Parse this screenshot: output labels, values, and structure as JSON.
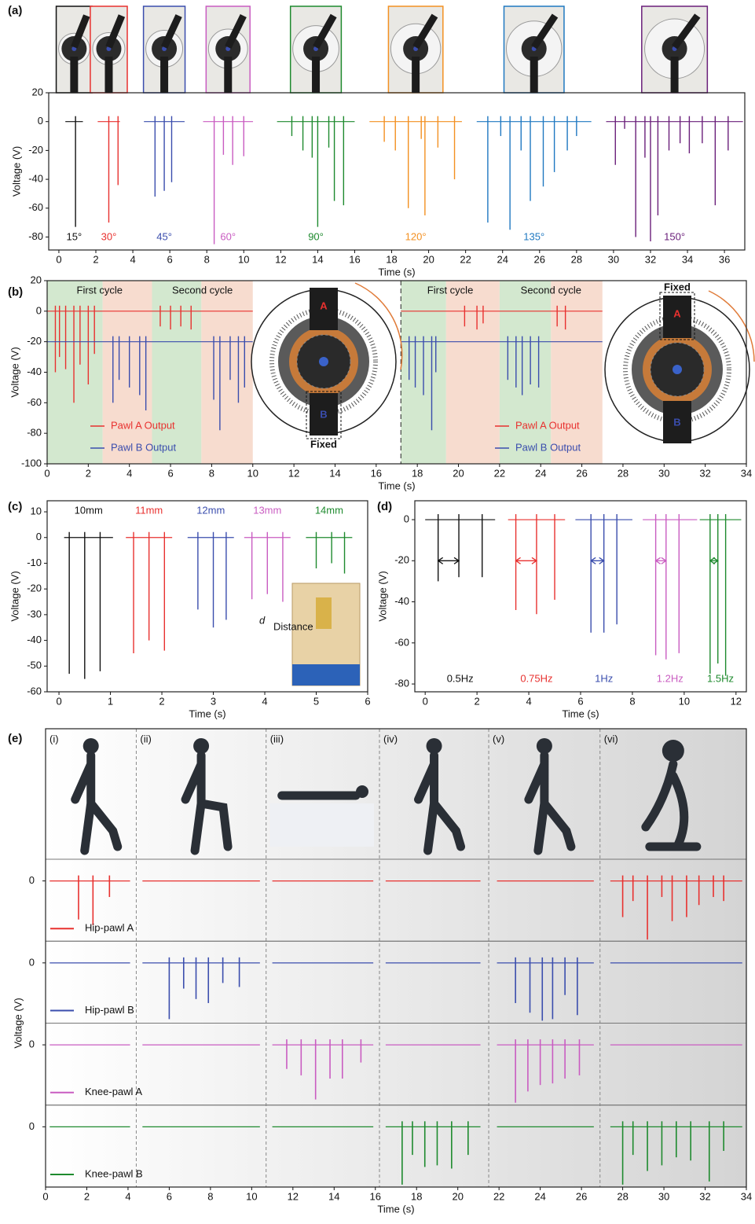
{
  "chart_data": [
    {
      "type": "spike",
      "panel": "(a)",
      "xlabel": "Time (s)",
      "ylabel": "Voltage (V)",
      "xlim": [
        -0.55,
        37.1
      ],
      "ylim": [
        -89,
        20
      ],
      "xticks": [
        0,
        2,
        4,
        6,
        8,
        10,
        12,
        14,
        16,
        18,
        20,
        22,
        24,
        26,
        28,
        30,
        32,
        34,
        36
      ],
      "yticks": [
        20,
        0,
        -20,
        -40,
        -60,
        -80
      ],
      "series": [
        {
          "name": "15°",
          "color": "#111111",
          "spans": [
            [
              0.35,
              1.3
            ]
          ],
          "x": [
            0.9
          ],
          "values": [
            -73
          ]
        },
        {
          "name": "30°",
          "color": "#e8312f",
          "spans": [
            [
              2.1,
              3.3
            ]
          ],
          "x": [
            2.7,
            3.2
          ],
          "values": [
            -70,
            -44
          ]
        },
        {
          "name": "45°",
          "color": "#3a4dad",
          "spans": [
            [
              4.6,
              6.8
            ]
          ],
          "x": [
            5.2,
            5.7,
            6.1
          ],
          "values": [
            -52,
            -48,
            -42
          ]
        },
        {
          "name": "60°",
          "color": "#c95cc1",
          "spans": [
            [
              7.8,
              10.5
            ]
          ],
          "x": [
            8.4,
            8.9,
            9.4,
            10.0
          ],
          "values": [
            -85,
            -23,
            -30,
            -24
          ]
        },
        {
          "name": "90°",
          "color": "#1e8a2e",
          "spans": [
            [
              11.8,
              16.0
            ]
          ],
          "x": [
            12.6,
            13.2,
            13.7,
            14.0,
            14.6,
            14.9,
            15.4
          ],
          "values": [
            -10,
            -20,
            -25,
            -73,
            -18,
            -55,
            -58
          ]
        },
        {
          "name": "120°",
          "color": "#f39021",
          "spans": [
            [
              16.8,
              21.8
            ]
          ],
          "x": [
            17.6,
            18.2,
            18.9,
            19.6,
            19.8,
            20.5,
            21.4
          ],
          "values": [
            -14,
            -20,
            -60,
            -12,
            -65,
            -18,
            -40
          ]
        },
        {
          "name": "135°",
          "color": "#1f78c1",
          "spans": [
            [
              22.6,
              28.8
            ]
          ],
          "x": [
            23.2,
            23.9,
            24.4,
            25.0,
            25.5,
            26.2,
            26.8,
            27.5,
            28.0
          ],
          "values": [
            -70,
            -10,
            -75,
            -20,
            -55,
            -45,
            -35,
            -20,
            -10
          ]
        },
        {
          "name": "150°",
          "color": "#6a1f7a",
          "spans": [
            [
              29.6,
              37.0
            ]
          ],
          "x": [
            30.1,
            30.6,
            31.2,
            31.7,
            32.0,
            32.4,
            33.0,
            33.6,
            34.1,
            34.8,
            35.5,
            36.2
          ],
          "values": [
            -30,
            -5,
            -80,
            -25,
            -83,
            -65,
            -20,
            -15,
            -22,
            -15,
            -58,
            -20
          ]
        }
      ]
    },
    {
      "type": "spike",
      "panel": "(b)",
      "xlabel": "Time (s)",
      "ylabel": "Voltage (V)",
      "xlim": [
        0,
        34
      ],
      "ylim": [
        -100,
        20
      ],
      "xticks": [
        0,
        2,
        4,
        6,
        8,
        10,
        12,
        14,
        16,
        18,
        20,
        22,
        24,
        26,
        28,
        30,
        32,
        34
      ],
      "yticks": [
        20,
        0,
        -20,
        -40,
        -60,
        -80,
        -100
      ],
      "regions": [
        {
          "x": [
            0,
            2.7
          ],
          "color": "#d3e8cf"
        },
        {
          "x": [
            2.7,
            5.1
          ],
          "color": "#f7dccf"
        },
        {
          "x": [
            5.1,
            7.5
          ],
          "color": "#d3e8cf"
        },
        {
          "x": [
            7.5,
            10
          ],
          "color": "#f7dccf"
        },
        {
          "x": [
            17.2,
            19.4
          ],
          "color": "#d3e8cf"
        },
        {
          "x": [
            19.4,
            22
          ],
          "color": "#f7dccf"
        },
        {
          "x": [
            22,
            24.5
          ],
          "color": "#d3e8cf"
        },
        {
          "x": [
            24.5,
            27
          ],
          "color": "#f7dccf"
        }
      ],
      "cycles": [
        {
          "label": "First cycle",
          "x": [
            0,
            5.1
          ]
        },
        {
          "label": "Second cycle",
          "x": [
            5.1,
            10
          ]
        },
        {
          "label": "First cycle",
          "x": [
            17.2,
            22
          ]
        },
        {
          "label": "Second cycle",
          "x": [
            22,
            27
          ]
        }
      ],
      "divider": 17.2,
      "diagram_labels": [
        "A",
        "B",
        "Fixed"
      ],
      "series": [
        {
          "name": "Pawl A Output",
          "color": "#e8312f",
          "baseline": 0,
          "spans": [
            [
              0,
              10
            ],
            [
              17.2,
              27
            ]
          ],
          "x": [
            0.4,
            0.6,
            0.9,
            1.3,
            1.6,
            2.0,
            2.3,
            5.5,
            6.0,
            6.5,
            7.0,
            20.3,
            20.9,
            21.2,
            24.8,
            25.2
          ],
          "values": [
            -40,
            -30,
            -38,
            -60,
            -35,
            -48,
            -28,
            -10,
            -12,
            -10,
            -12,
            -10,
            -12,
            -8,
            -10,
            -12
          ]
        },
        {
          "name": "Pawl B Output",
          "color": "#3a4dad",
          "baseline": -20,
          "spans": [
            [
              0,
              10
            ],
            [
              17.2,
              27
            ]
          ],
          "x": [
            3.2,
            3.5,
            4.0,
            4.5,
            4.8,
            8.1,
            8.4,
            8.9,
            9.3,
            9.6,
            17.6,
            17.9,
            18.3,
            18.7,
            18.9,
            22.4,
            22.8,
            23.1,
            23.5,
            23.9
          ],
          "values": [
            -60,
            -45,
            -50,
            -55,
            -65,
            -58,
            -78,
            -45,
            -60,
            -50,
            -45,
            -50,
            -55,
            -78,
            -40,
            -45,
            -50,
            -55,
            -48,
            -50
          ]
        }
      ]
    },
    {
      "type": "spike",
      "panel": "(c)",
      "xlabel": "Time (s)",
      "ylabel": "Voltage (V)",
      "xlim": [
        -0.23,
        6
      ],
      "ylim": [
        -60,
        14.3
      ],
      "xticks": [
        0,
        1,
        2,
        3,
        4,
        5,
        6
      ],
      "yticks": [
        10,
        0,
        -10,
        -20,
        -30,
        -40,
        -50,
        -60
      ],
      "inset": {
        "symbol": "d",
        "subscript": "Distance"
      },
      "series": [
        {
          "name": "10mm",
          "color": "#111111",
          "spans": [
            [
              0.1,
              1.05
            ]
          ],
          "x": [
            0.2,
            0.5,
            0.8
          ],
          "values": [
            -53,
            -55,
            -52
          ]
        },
        {
          "name": "11mm",
          "color": "#e8312f",
          "spans": [
            [
              1.3,
              2.2
            ]
          ],
          "x": [
            1.45,
            1.75,
            2.05
          ],
          "values": [
            -45,
            -40,
            -44
          ]
        },
        {
          "name": "12mm",
          "color": "#3a4dad",
          "spans": [
            [
              2.5,
              3.4
            ]
          ],
          "x": [
            2.7,
            3.0,
            3.25
          ],
          "values": [
            -28,
            -35,
            -32
          ]
        },
        {
          "name": "13mm",
          "color": "#c95cc1",
          "spans": [
            [
              3.6,
              4.5
            ]
          ],
          "x": [
            3.75,
            4.05,
            4.35
          ],
          "values": [
            -24,
            -22,
            -25
          ]
        },
        {
          "name": "14mm",
          "color": "#1e8a2e",
          "spans": [
            [
              4.8,
              5.7
            ]
          ],
          "x": [
            5.0,
            5.3,
            5.55
          ],
          "values": [
            -12,
            -10,
            -14
          ]
        }
      ]
    },
    {
      "type": "spike",
      "panel": "(d)",
      "xlabel": "Time (s)",
      "ylabel": "Voltage (V)",
      "xlim": [
        -0.4,
        12.4
      ],
      "ylim": [
        -83.8,
        9.2
      ],
      "xticks": [
        0,
        2,
        4,
        6,
        8,
        10,
        12
      ],
      "yticks": [
        0,
        -20,
        -40,
        -60,
        -80
      ],
      "series": [
        {
          "name": "0.5Hz",
          "color": "#111111",
          "spans": [
            [
              0,
              2.7
            ]
          ],
          "x": [
            0.5,
            1.3,
            2.2
          ],
          "values": [
            -30,
            -28,
            -28
          ]
        },
        {
          "name": "0.75Hz",
          "color": "#e8312f",
          "spans": [
            [
              3.2,
              5.4
            ]
          ],
          "x": [
            3.5,
            4.3,
            5.0
          ],
          "values": [
            -44,
            -46,
            -39
          ]
        },
        {
          "name": "1Hz",
          "color": "#3a4dad",
          "spans": [
            [
              5.8,
              8.0
            ]
          ],
          "x": [
            6.4,
            6.9,
            7.4
          ],
          "values": [
            -55,
            -55,
            -51
          ]
        },
        {
          "name": "1.2Hz",
          "color": "#c95cc1",
          "spans": [
            [
              8.4,
              10.5
            ]
          ],
          "x": [
            8.9,
            9.3,
            9.8
          ],
          "values": [
            -66,
            -68,
            -65
          ]
        },
        {
          "name": "1.5Hz",
          "color": "#1e8a2e",
          "spans": [
            [
              10.6,
              12.2
            ]
          ],
          "x": [
            11.0,
            11.3,
            11.6
          ],
          "values": [
            -75,
            -70,
            -76
          ]
        }
      ]
    },
    {
      "type": "spike-rows",
      "panel": "(e)",
      "xlabel": "Time (s)",
      "ylabel": "Voltage (V)",
      "xlim": [
        0,
        34
      ],
      "ylim": [
        -75,
        27
      ],
      "xticks": [
        0,
        2,
        4,
        6,
        8,
        10,
        12,
        14,
        16,
        18,
        20,
        22,
        24,
        26,
        28,
        30,
        32,
        34
      ],
      "yticks": [
        0
      ],
      "column_labels": [
        "(i)",
        "(ii)",
        "(iii)",
        "(iv)",
        "(v)",
        "(vi)"
      ],
      "dividers": [
        4.4,
        10.7,
        16.2,
        21.5,
        26.9
      ],
      "series": [
        {
          "name": "Hip-pawl A",
          "color": "#e8312f",
          "spans": [
            [
              0.2,
              4.1
            ],
            [
              4.7,
              10.4
            ],
            [
              11.0,
              15.9
            ],
            [
              16.5,
              21.1
            ],
            [
              21.9,
              26.6
            ],
            [
              27.4,
              33.8
            ]
          ],
          "x": [
            1.6,
            2.3,
            3.1,
            28.0,
            28.5,
            29.2,
            29.9,
            30.4,
            31.1,
            31.7,
            32.4,
            32.9
          ],
          "values": [
            -48,
            -55,
            -20,
            -45,
            -25,
            -73,
            -20,
            -50,
            -45,
            -30,
            -20,
            -25
          ]
        },
        {
          "name": "Hip-pawl B",
          "color": "#3a4dad",
          "spans": [
            [
              0.2,
              4.1
            ],
            [
              4.7,
              10.4
            ],
            [
              11.0,
              15.9
            ],
            [
              16.5,
              21.1
            ],
            [
              21.9,
              26.6
            ],
            [
              27.4,
              33.8
            ]
          ],
          "x": [
            6.0,
            6.7,
            7.3,
            7.9,
            8.6,
            9.4,
            22.8,
            23.5,
            24.1,
            24.6,
            25.2,
            25.8
          ],
          "values": [
            -70,
            -32,
            -45,
            -50,
            -25,
            -30,
            -50,
            -62,
            -72,
            -70,
            -40,
            -65
          ]
        },
        {
          "name": "Knee-pawl A",
          "color": "#c95cc1",
          "spans": [
            [
              0.2,
              4.1
            ],
            [
              4.7,
              10.4
            ],
            [
              11.0,
              15.9
            ],
            [
              16.5,
              21.1
            ],
            [
              21.9,
              26.6
            ],
            [
              27.4,
              33.8
            ]
          ],
          "x": [
            11.7,
            12.4,
            13.1,
            13.8,
            14.4,
            15.3,
            22.8,
            23.4,
            24.0,
            24.6,
            25.2,
            25.9
          ],
          "values": [
            -30,
            -38,
            -68,
            -42,
            -42,
            -22,
            -72,
            -58,
            -50,
            -48,
            -42,
            -38
          ]
        },
        {
          "name": "Knee-pawl B",
          "color": "#1e8a2e",
          "spans": [
            [
              0.2,
              4.1
            ],
            [
              4.7,
              10.4
            ],
            [
              11.0,
              15.9
            ],
            [
              16.5,
              21.1
            ],
            [
              21.9,
              26.6
            ],
            [
              27.4,
              33.8
            ]
          ],
          "x": [
            17.3,
            17.8,
            18.4,
            19.0,
            19.7,
            20.5,
            28.0,
            28.5,
            29.2,
            29.9,
            30.6,
            31.3,
            32.2,
            32.9
          ],
          "values": [
            -72,
            -35,
            -50,
            -48,
            -52,
            -35,
            -72,
            -35,
            -55,
            -48,
            -38,
            -42,
            -68,
            -30
          ]
        }
      ]
    }
  ]
}
